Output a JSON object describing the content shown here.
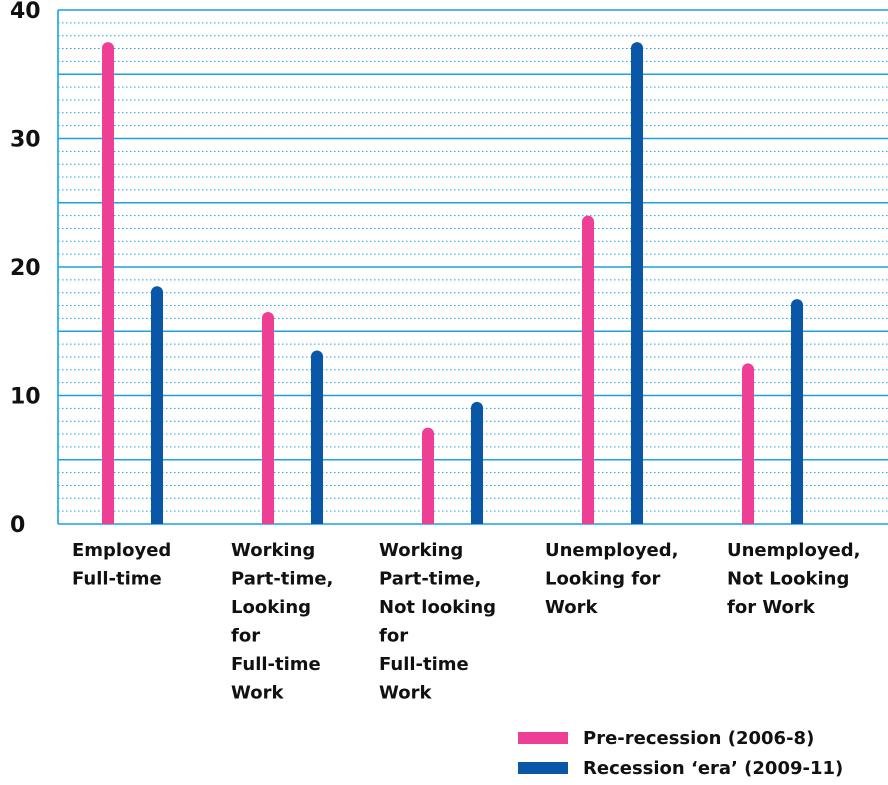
{
  "chart_data": {
    "type": "bar",
    "categories": [
      "Employed Full-time",
      "Working Part-time, Looking for Full-time Work",
      "Working Part-time, Not looking for Full-time Work",
      "Unemployed, Looking for Work",
      "Unemployed, Not Looking for Work"
    ],
    "category_lines": [
      [
        "Employed",
        "Full-time"
      ],
      [
        "Working",
        "Part-time,",
        "Looking",
        "for",
        "Full-time",
        "Work"
      ],
      [
        "Working",
        "Part-time,",
        "Not looking",
        "for",
        "Full-time",
        "Work"
      ],
      [
        "Unemployed,",
        "Looking for",
        "Work"
      ],
      [
        "Unemployed,",
        "Not Looking",
        "for Work"
      ]
    ],
    "series": [
      {
        "name": "Pre-recession (2006-8)",
        "color": "#ee3f96",
        "values": [
          37.5,
          16.5,
          7.5,
          24,
          12.5
        ]
      },
      {
        "name": "Recession ‘era’ (2009-11)",
        "color": "#0a57a8",
        "values": [
          18.5,
          13.5,
          9.5,
          37.5,
          17.5
        ]
      }
    ],
    "ylim": [
      0,
      40
    ],
    "yticks": [
      0,
      10,
      20,
      30,
      40
    ],
    "grid": true,
    "grid_color": "#1aa3de",
    "legend_position": "bottom-right",
    "title": "",
    "xlabel": "",
    "ylabel": ""
  }
}
